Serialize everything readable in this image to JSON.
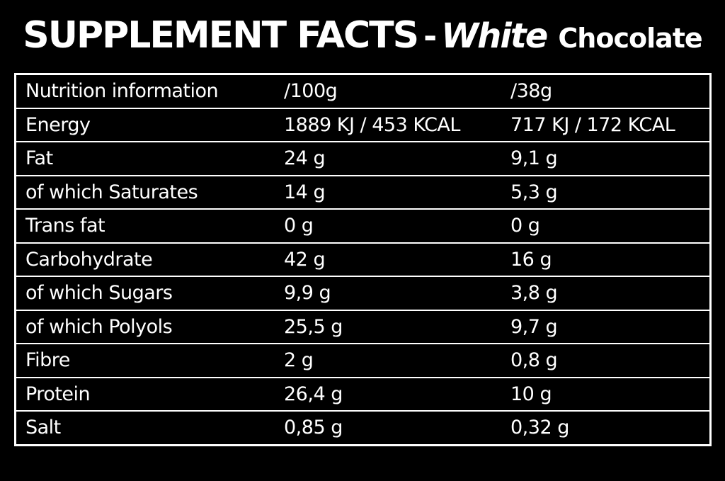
{
  "header": {
    "title": "SUPPLEMENT FACTS",
    "separator": "-",
    "flavor_italic": "White",
    "flavor": "Chocolate"
  },
  "table": {
    "rows": [
      [
        "Nutrition information",
        "/100g",
        "/38g"
      ],
      [
        "Energy",
        "1889 KJ / 453 KCAL",
        "717 KJ / 172 KCAL"
      ],
      [
        "Fat",
        "24 g",
        "9,1 g"
      ],
      [
        "of which Saturates",
        "14 g",
        "5,3 g"
      ],
      [
        "Trans fat",
        "0 g",
        "0 g"
      ],
      [
        "Carbohydrate",
        "42 g",
        "16 g"
      ],
      [
        "of which Sugars",
        "9,9 g",
        "3,8 g"
      ],
      [
        "of which Polyols",
        "25,5 g",
        "9,7 g"
      ],
      [
        "Fibre",
        "2 g",
        "0,8 g"
      ],
      [
        "Protein",
        "26,4 g",
        "10 g"
      ],
      [
        "Salt",
        "0,85 g",
        "0,32 g"
      ]
    ]
  }
}
